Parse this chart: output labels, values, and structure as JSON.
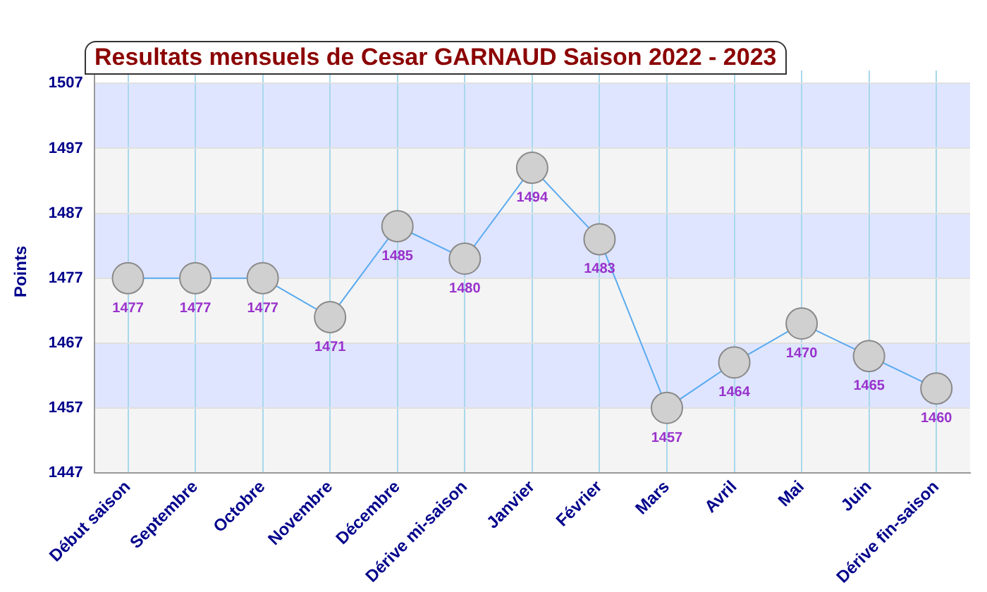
{
  "chart_data": {
    "type": "line",
    "title": "Resultats mensuels de Cesar GARNAUD Saison 2022 - 2023",
    "ylabel": "Points",
    "categories": [
      "Début saison",
      "Septembre",
      "Octobre",
      "Novembre",
      "Décembre",
      "Dérive mi-saison",
      "Janvier",
      "Février",
      "Mars",
      "Avril",
      "Mai",
      "Juin",
      "Dérive fin-saison"
    ],
    "series": [
      {
        "color": "#5aaaf0",
        "values": [
          1477,
          1477,
          1477,
          1471,
          1485,
          1480,
          1494,
          1483,
          1457,
          1464,
          1470,
          1465,
          1460
        ]
      }
    ],
    "ylim": [
      1447,
      1509
    ],
    "yticks": [
      1447,
      1457,
      1467,
      1477,
      1487,
      1497,
      1507
    ],
    "grid": true,
    "legend": false,
    "marker": "circle",
    "line_style": "solid",
    "data_labels": true
  }
}
